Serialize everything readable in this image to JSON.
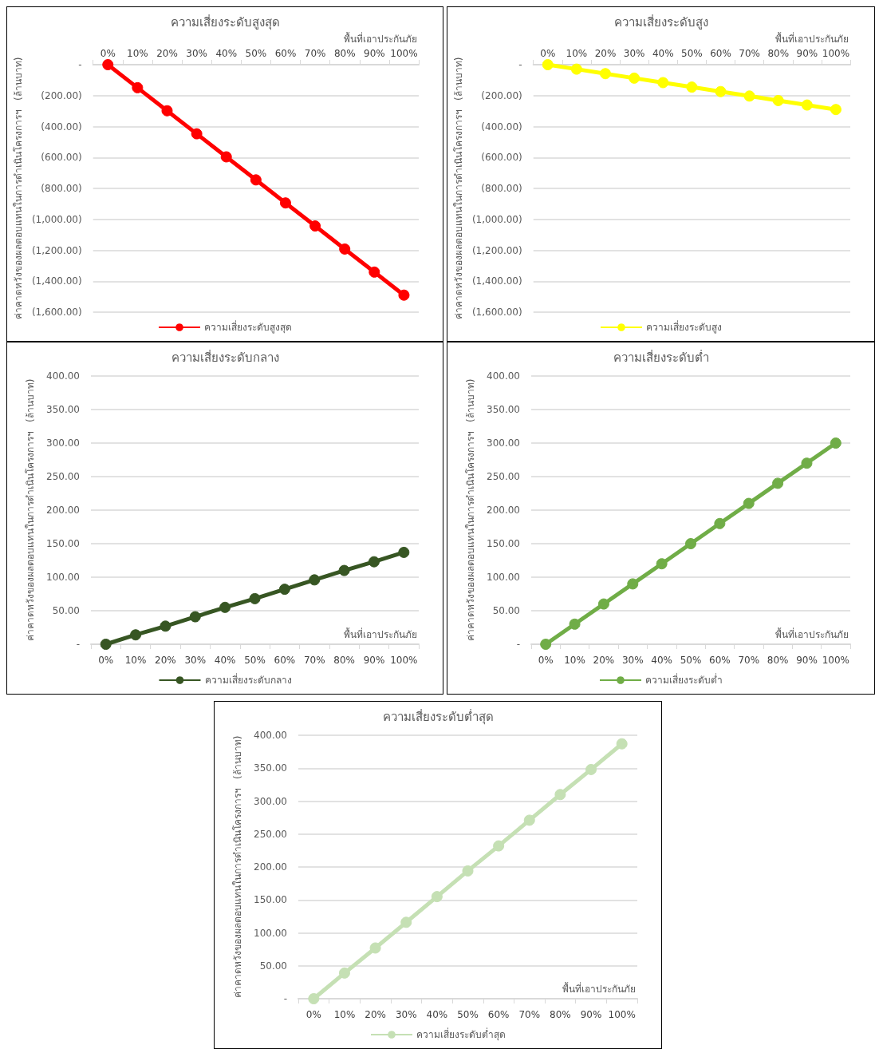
{
  "chart_data": [
    {
      "type": "line",
      "title": "ความเสี่ยงระดับสูงสุด",
      "xlabel": "พื้นที่เอาประกันภัย",
      "ylabel": "ค่าคาดหวังของผลตอบแทนในการดำเนินโครงการฯ   (ล้านบาท)",
      "categories": [
        "0%",
        "10%",
        "20%",
        "30%",
        "40%",
        "50%",
        "60%",
        "70%",
        "80%",
        "90%",
        "100%"
      ],
      "series": [
        {
          "name": "ความเสี่ยงระดับสูงสุด",
          "color": "#ff0000",
          "values": [
            0,
            -149,
            -298,
            -447,
            -596,
            -745,
            -894,
            -1043,
            -1192,
            -1341,
            -1490
          ]
        }
      ],
      "ylim": [
        -1600,
        0
      ],
      "yticks": [
        {
          "value": 0,
          "label": "-"
        },
        {
          "value": -200,
          "label": "(200.00)"
        },
        {
          "value": -400,
          "label": "(400.00)"
        },
        {
          "value": -600,
          "label": "(600.00)"
        },
        {
          "value": -800,
          "label": "(800.00)"
        },
        {
          "value": -1000,
          "label": "(1,000.00)"
        },
        {
          "value": -1200,
          "label": "(1,200.00)"
        },
        {
          "value": -1400,
          "label": "(1,400.00)"
        },
        {
          "value": -1600,
          "label": "(1,600.00)"
        }
      ],
      "grid": "y",
      "legend": "bottom",
      "marker": "circle"
    },
    {
      "type": "line",
      "title": "ความเสี่ยงระดับสูง",
      "xlabel": "พื้นที่เอาประกันภัย",
      "ylabel": "ค่าคาดหวังของผลตอบแทนในการดำเนินโครงการฯ   (ล้านบาท)",
      "categories": [
        "0%",
        "10%",
        "20%",
        "30%",
        "40%",
        "50%",
        "60%",
        "70%",
        "80%",
        "90%",
        "100%"
      ],
      "series": [
        {
          "name": "ความเสี่ยงระดับสูง",
          "color": "#ffff00",
          "values": [
            0,
            -29,
            -58,
            -87,
            -116,
            -145,
            -174,
            -203,
            -232,
            -261,
            -290
          ]
        }
      ],
      "ylim": [
        -1600,
        0
      ],
      "yticks": [
        {
          "value": 0,
          "label": "-"
        },
        {
          "value": -200,
          "label": "(200.00)"
        },
        {
          "value": -400,
          "label": "(400.00)"
        },
        {
          "value": -600,
          "label": "(600.00)"
        },
        {
          "value": -800,
          "label": "(800.00)"
        },
        {
          "value": -1000,
          "label": "(1,000.00)"
        },
        {
          "value": -1200,
          "label": "(1,200.00)"
        },
        {
          "value": -1400,
          "label": "(1,400.00)"
        },
        {
          "value": -1600,
          "label": "(1,600.00)"
        }
      ],
      "grid": "y",
      "legend": "bottom",
      "marker": "circle"
    },
    {
      "type": "line",
      "title": "ความเสี่ยงระดับกลาง",
      "xlabel": "พื้นที่เอาประกันภัย",
      "ylabel": "ค่าคาดหวังของผลตอบแทนในการดำเนินโครงการฯ   (ล้านบาท)",
      "categories": [
        "0%",
        "10%",
        "20%",
        "30%",
        "40%",
        "50%",
        "60%",
        "70%",
        "80%",
        "90%",
        "100%"
      ],
      "series": [
        {
          "name": "ความเสี่ยงระดับกลาง",
          "color": "#375623",
          "values": [
            0,
            14,
            27,
            41,
            55,
            68,
            82,
            96,
            110,
            123,
            137
          ]
        }
      ],
      "ylim": [
        0,
        400
      ],
      "yticks": [
        {
          "value": 0,
          "label": "-"
        },
        {
          "value": 50,
          "label": "50.00"
        },
        {
          "value": 100,
          "label": "100.00"
        },
        {
          "value": 150,
          "label": "150.00"
        },
        {
          "value": 200,
          "label": "200.00"
        },
        {
          "value": 250,
          "label": "250.00"
        },
        {
          "value": 300,
          "label": "300.00"
        },
        {
          "value": 350,
          "label": "350.00"
        },
        {
          "value": 400,
          "label": "400.00"
        }
      ],
      "grid": "y",
      "legend": "bottom",
      "marker": "circle"
    },
    {
      "type": "line",
      "title": "ความเสี่ยงระดับต่ำ",
      "xlabel": "พื้นที่เอาประกันภัย",
      "ylabel": "ค่าคาดหวังของผลตอบแทนในการดำเนินโครงการฯ   (ล้านบาท)",
      "categories": [
        "0%",
        "10%",
        "20%",
        "30%",
        "40%",
        "50%",
        "60%",
        "70%",
        "80%",
        "90%",
        "100%"
      ],
      "series": [
        {
          "name": "ความเสี่ยงระดับต่ำ",
          "color": "#70ad47",
          "values": [
            0,
            30,
            60,
            90,
            120,
            150,
            180,
            210,
            240,
            270,
            300
          ]
        }
      ],
      "ylim": [
        0,
        400
      ],
      "yticks": [
        {
          "value": 0,
          "label": "-"
        },
        {
          "value": 50,
          "label": "50.00"
        },
        {
          "value": 100,
          "label": "100.00"
        },
        {
          "value": 150,
          "label": "150.00"
        },
        {
          "value": 200,
          "label": "200.00"
        },
        {
          "value": 250,
          "label": "250.00"
        },
        {
          "value": 300,
          "label": "300.00"
        },
        {
          "value": 350,
          "label": "350.00"
        },
        {
          "value": 400,
          "label": "400.00"
        }
      ],
      "grid": "y",
      "legend": "bottom",
      "marker": "circle"
    },
    {
      "type": "line",
      "title": "ความเสี่ยงระดับต่ำสุด",
      "xlabel": "พื้นที่เอาประกันภัย",
      "ylabel": "ค่าคาดหวังของผลตอบแทนในการดำเนินโครงการฯ   (ล้านบาท)",
      "categories": [
        "0%",
        "10%",
        "20%",
        "30%",
        "40%",
        "50%",
        "60%",
        "70%",
        "80%",
        "90%",
        "100%"
      ],
      "series": [
        {
          "name": "ความเสี่ยงระดับต่ำสุด",
          "color": "#c5e0b4",
          "values": [
            0,
            39,
            77,
            116,
            155,
            194,
            232,
            271,
            310,
            348,
            387
          ]
        }
      ],
      "ylim": [
        0,
        400
      ],
      "yticks": [
        {
          "value": 0,
          "label": "-"
        },
        {
          "value": 50,
          "label": "50.00"
        },
        {
          "value": 100,
          "label": "100.00"
        },
        {
          "value": 150,
          "label": "150.00"
        },
        {
          "value": 200,
          "label": "200.00"
        },
        {
          "value": 250,
          "label": "250.00"
        },
        {
          "value": 300,
          "label": "300.00"
        },
        {
          "value": 350,
          "label": "350.00"
        },
        {
          "value": 400,
          "label": "400.00"
        }
      ],
      "grid": "y",
      "legend": "bottom",
      "marker": "circle"
    }
  ]
}
